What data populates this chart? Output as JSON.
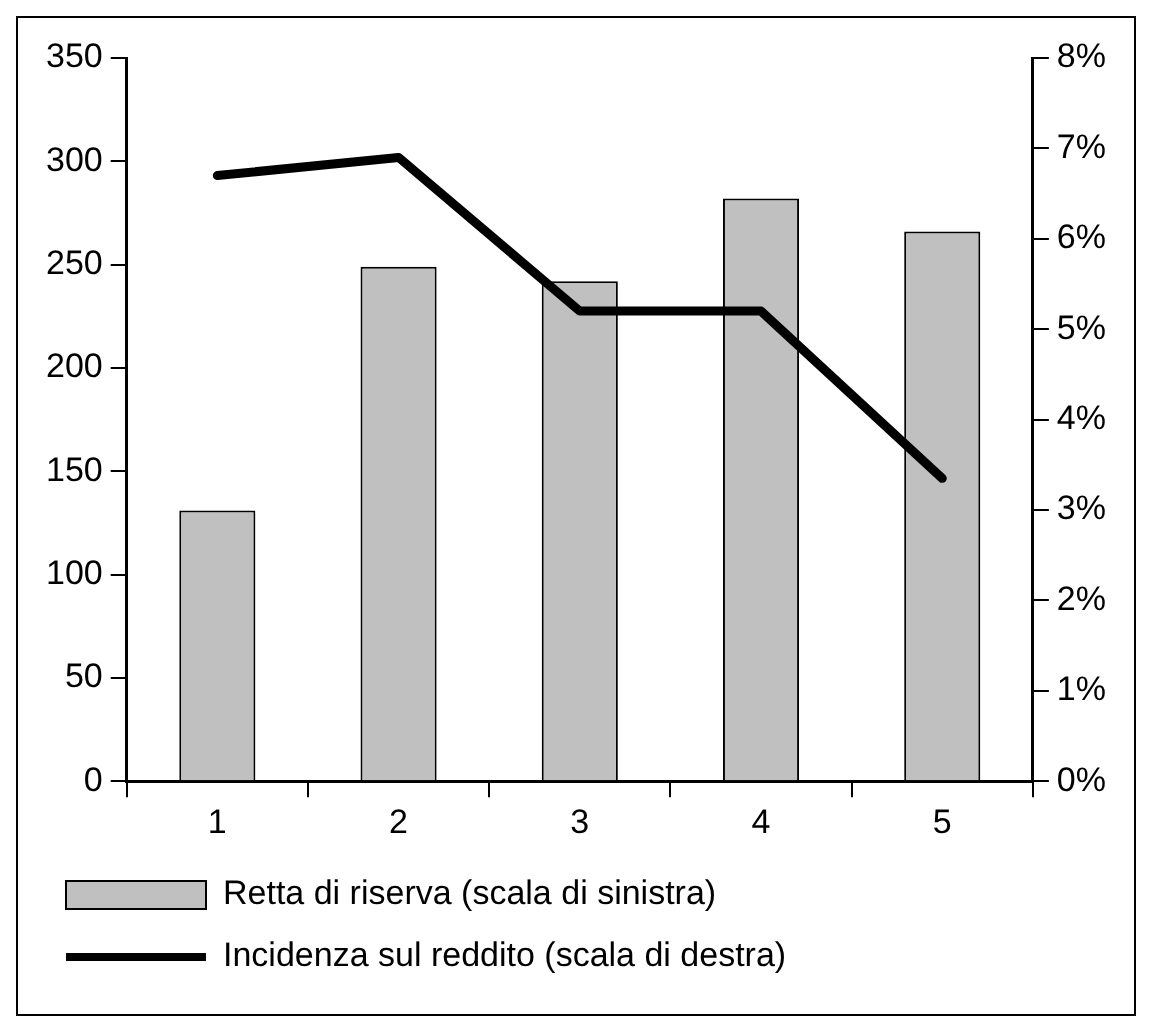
{
  "chart_data": {
    "type": "bar",
    "categories": [
      "1",
      "2",
      "3",
      "4",
      "5"
    ],
    "series": [
      {
        "name": "Retta di riserva (scala di sinistra)",
        "color": "#c0c0c0",
        "values": [
          131,
          249,
          242,
          282,
          266
        ]
      },
      {
        "name": "Incidenza sul reddito (scala di destra)",
        "type": "line",
        "axis": "y2",
        "color": "#000000",
        "values": [
          6.7,
          6.9,
          5.2,
          5.2,
          3.35
        ]
      }
    ],
    "ylim": [
      0,
      350
    ],
    "yticks": [
      0,
      50,
      100,
      150,
      200,
      250,
      300,
      350
    ],
    "y2lim": [
      0,
      8
    ],
    "y2ticks": [
      {
        "value": 0,
        "label": "0%"
      },
      {
        "value": 1,
        "label": "1%"
      },
      {
        "value": 2,
        "label": "2%"
      },
      {
        "value": 3,
        "label": "3%"
      },
      {
        "value": 4,
        "label": "4%"
      },
      {
        "value": 5,
        "label": "5%"
      },
      {
        "value": 6,
        "label": "6%"
      },
      {
        "value": 7,
        "label": "7%"
      },
      {
        "value": 8,
        "label": "8%"
      }
    ],
    "grid": false,
    "legend": "bottom",
    "marker": "none"
  }
}
